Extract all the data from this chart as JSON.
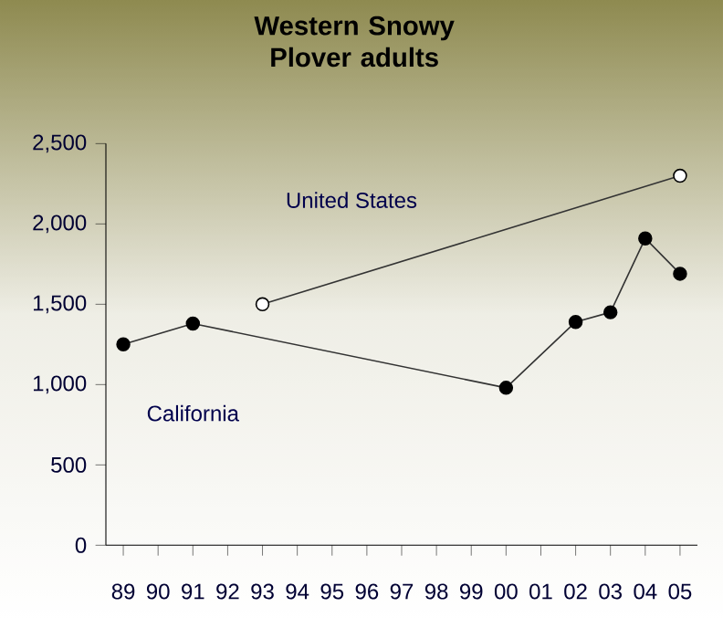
{
  "chart_data": {
    "type": "line",
    "title": "Western Snowy Plover adults",
    "categories": [
      "89",
      "90",
      "91",
      "92",
      "93",
      "94",
      "95",
      "96",
      "97",
      "98",
      "99",
      "00",
      "01",
      "02",
      "03",
      "04",
      "05"
    ],
    "series": [
      {
        "name": "United States",
        "color": "#ffffff",
        "values": [
          null,
          null,
          null,
          null,
          1500,
          null,
          null,
          null,
          null,
          null,
          null,
          null,
          null,
          null,
          null,
          null,
          2300
        ]
      },
      {
        "name": "California",
        "color": "#000000",
        "values": [
          1250,
          null,
          1380,
          null,
          null,
          null,
          null,
          null,
          null,
          null,
          null,
          980,
          null,
          1390,
          1450,
          1910,
          1690
        ]
      }
    ],
    "ylim": [
      0,
      2500
    ],
    "yticks": [
      0,
      500,
      {
        "value": 1000,
        "label": "1,000"
      },
      {
        "value": 1500,
        "label": "1,500"
      },
      {
        "value": 2000,
        "label": "2,000"
      },
      {
        "value": 2500,
        "label": "2,500"
      }
    ],
    "marker": "circle",
    "grid": false,
    "legend": false
  }
}
